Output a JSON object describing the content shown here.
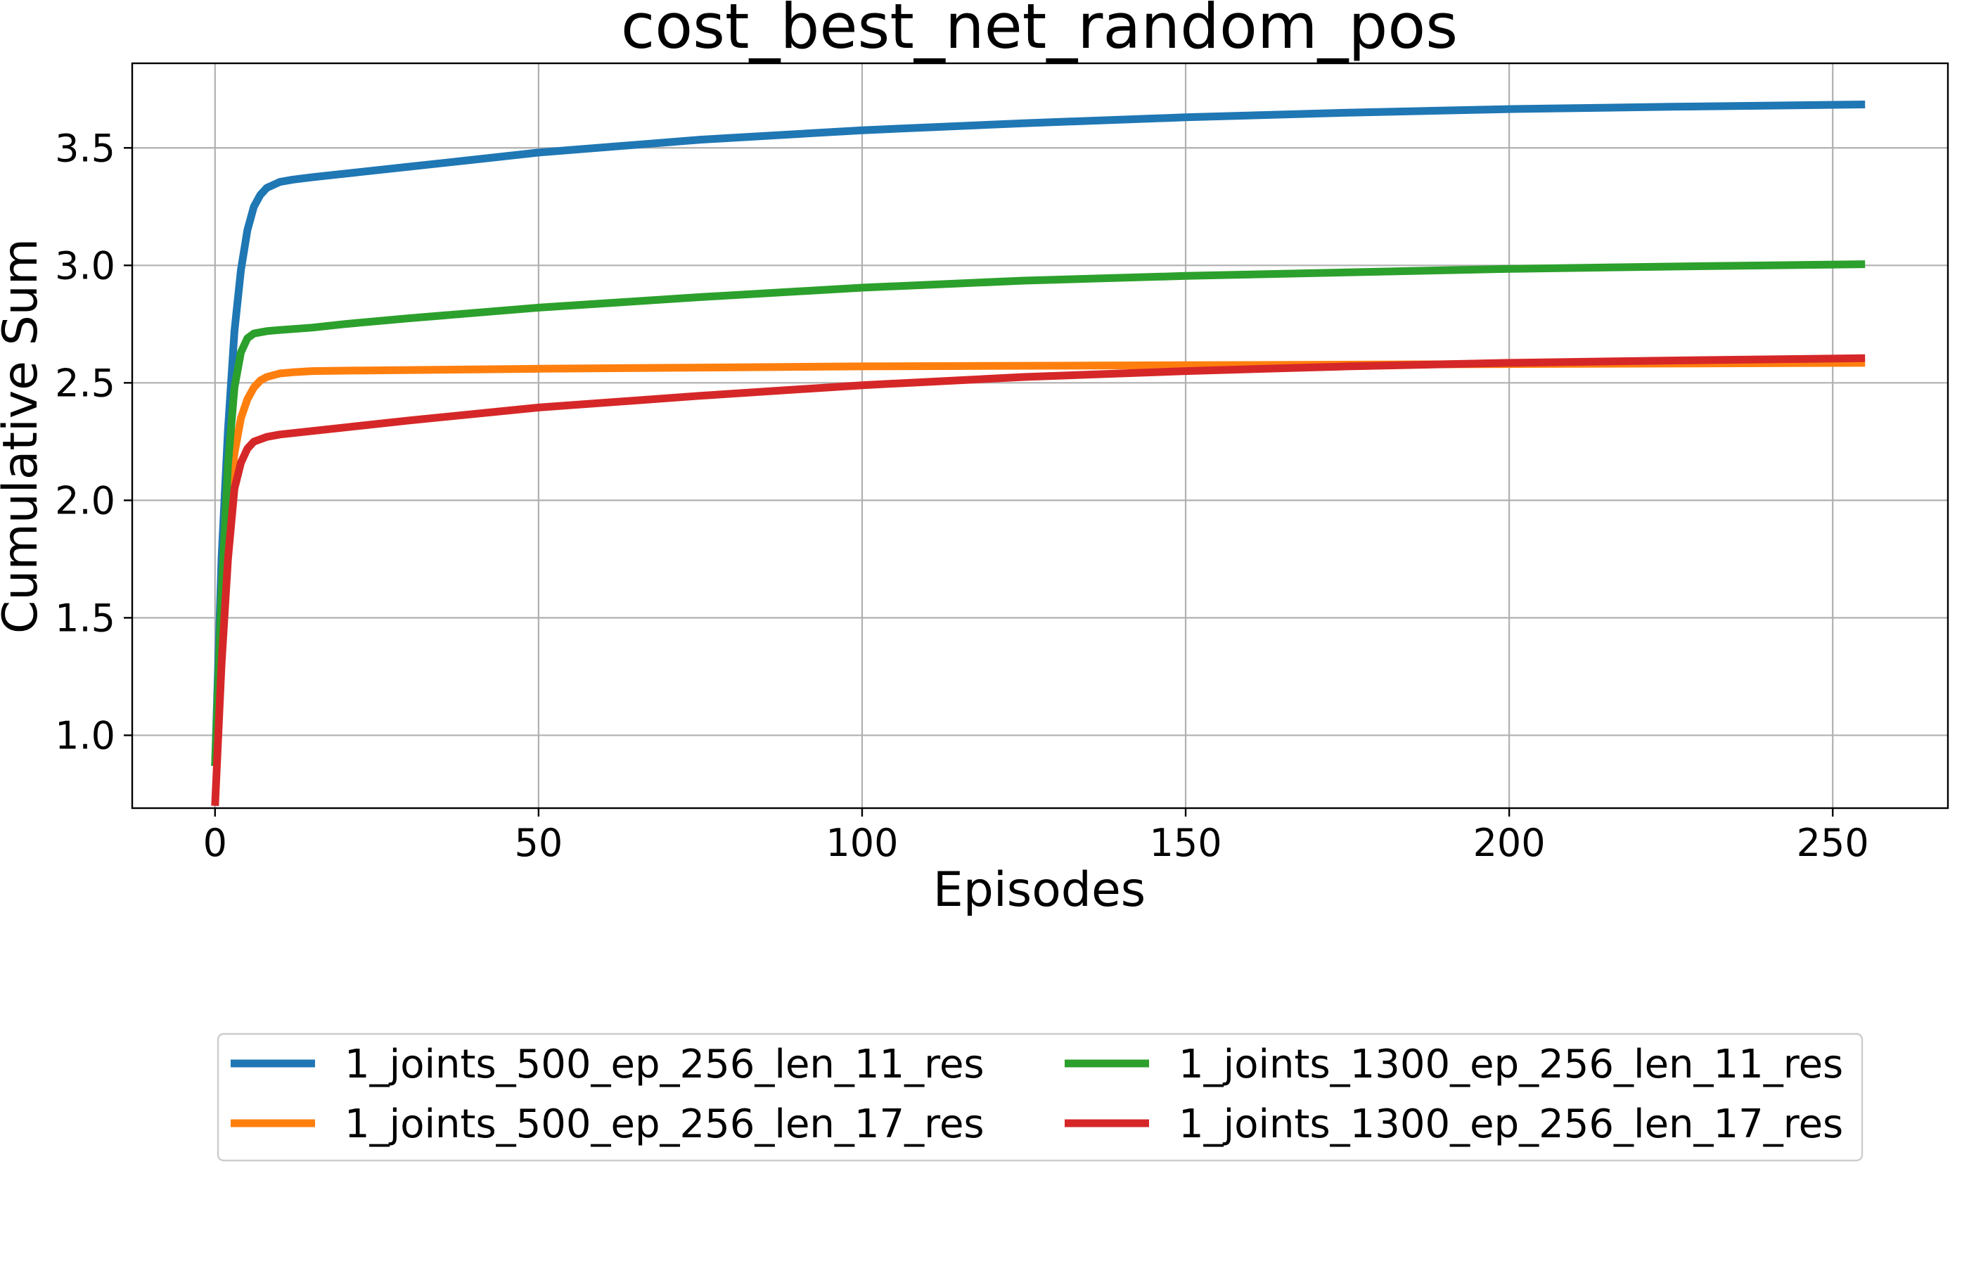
{
  "chart_data": {
    "type": "line",
    "title": "cost_best_net_random_pos",
    "xlabel": "Episodes",
    "ylabel": "Cumulative Sum",
    "xlim": [
      -12.8,
      267.8
    ],
    "ylim": [
      0.69,
      3.86
    ],
    "xticks": [
      0,
      50,
      100,
      150,
      200,
      250
    ],
    "yticks": [
      1.0,
      1.5,
      2.0,
      2.5,
      3.0,
      3.5
    ],
    "xtick_labels": [
      "0",
      "50",
      "100",
      "150",
      "200",
      "250"
    ],
    "ytick_labels": [
      "1.0",
      "1.5",
      "2.0",
      "2.5",
      "3.0",
      "3.5"
    ],
    "grid": true,
    "legend_position": "below",
    "series": [
      {
        "name": "1_joints_500_ep_256_len_11_res",
        "color": "#1f77b4",
        "points": [
          [
            0,
            0.87
          ],
          [
            1,
            1.75
          ],
          [
            2,
            2.3
          ],
          [
            3,
            2.72
          ],
          [
            4,
            2.98
          ],
          [
            5,
            3.15
          ],
          [
            6,
            3.25
          ],
          [
            7,
            3.3
          ],
          [
            8,
            3.33
          ],
          [
            10,
            3.355
          ],
          [
            12,
            3.365
          ],
          [
            15,
            3.375
          ],
          [
            20,
            3.39
          ],
          [
            30,
            3.42
          ],
          [
            40,
            3.45
          ],
          [
            50,
            3.48
          ],
          [
            75,
            3.535
          ],
          [
            100,
            3.575
          ],
          [
            125,
            3.605
          ],
          [
            150,
            3.63
          ],
          [
            175,
            3.65
          ],
          [
            200,
            3.665
          ],
          [
            225,
            3.675
          ],
          [
            255,
            3.685
          ]
        ]
      },
      {
        "name": "1_joints_500_ep_256_len_17_res",
        "color": "#ff7f0e",
        "points": [
          [
            0,
            0.87
          ],
          [
            1,
            1.5
          ],
          [
            2,
            1.95
          ],
          [
            3,
            2.2
          ],
          [
            4,
            2.35
          ],
          [
            5,
            2.43
          ],
          [
            6,
            2.48
          ],
          [
            7,
            2.51
          ],
          [
            8,
            2.525
          ],
          [
            10,
            2.54
          ],
          [
            12,
            2.545
          ],
          [
            15,
            2.55
          ],
          [
            20,
            2.552
          ],
          [
            50,
            2.56
          ],
          [
            100,
            2.57
          ],
          [
            150,
            2.575
          ],
          [
            200,
            2.58
          ],
          [
            255,
            2.585
          ]
        ]
      },
      {
        "name": "1_joints_1300_ep_256_len_11_res",
        "color": "#2ca02c",
        "points": [
          [
            0,
            0.87
          ],
          [
            1,
            1.6
          ],
          [
            2,
            2.15
          ],
          [
            3,
            2.48
          ],
          [
            4,
            2.63
          ],
          [
            5,
            2.69
          ],
          [
            6,
            2.71
          ],
          [
            8,
            2.72
          ],
          [
            10,
            2.725
          ],
          [
            15,
            2.735
          ],
          [
            20,
            2.75
          ],
          [
            30,
            2.775
          ],
          [
            50,
            2.82
          ],
          [
            75,
            2.865
          ],
          [
            100,
            2.905
          ],
          [
            125,
            2.935
          ],
          [
            150,
            2.955
          ],
          [
            175,
            2.97
          ],
          [
            200,
            2.985
          ],
          [
            225,
            2.995
          ],
          [
            255,
            3.005
          ]
        ]
      },
      {
        "name": "1_joints_1300_ep_256_len_17_res",
        "color": "#d62728",
        "points": [
          [
            0,
            0.7
          ],
          [
            1,
            1.3
          ],
          [
            2,
            1.75
          ],
          [
            3,
            2.05
          ],
          [
            4,
            2.16
          ],
          [
            5,
            2.22
          ],
          [
            6,
            2.25
          ],
          [
            8,
            2.27
          ],
          [
            10,
            2.28
          ],
          [
            15,
            2.295
          ],
          [
            20,
            2.31
          ],
          [
            30,
            2.34
          ],
          [
            50,
            2.395
          ],
          [
            75,
            2.445
          ],
          [
            100,
            2.49
          ],
          [
            125,
            2.525
          ],
          [
            150,
            2.55
          ],
          [
            175,
            2.57
          ],
          [
            200,
            2.585
          ],
          [
            225,
            2.595
          ],
          [
            255,
            2.605
          ]
        ]
      }
    ]
  }
}
